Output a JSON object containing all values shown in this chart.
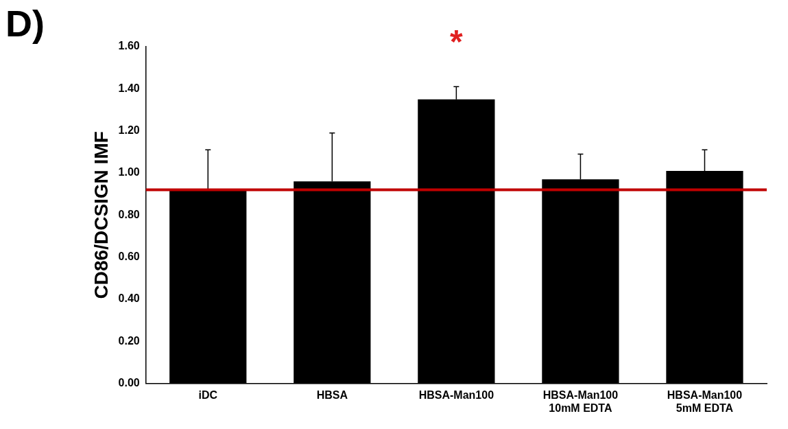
{
  "chart_data": {
    "type": "bar",
    "title": "D)",
    "ylabel": "CD86/DCSIGN IMF",
    "categories": [
      "iDC",
      "HBSA",
      "HBSA-Man100",
      "HBSA-Man100\n10mM EDTA",
      "HBSA-Man100\n5mM EDTA"
    ],
    "values": [
      0.92,
      0.96,
      1.35,
      0.97,
      1.01
    ],
    "errors": [
      [
        0.92,
        1.11
      ],
      [
        0.96,
        1.19
      ],
      [
        1.35,
        1.41
      ],
      [
        0.97,
        1.09
      ],
      [
        1.01,
        1.11
      ]
    ],
    "color": "#000000",
    "ylim": [
      0,
      1.6
    ],
    "yticks": [
      {
        "value": 0,
        "label": "0.00"
      },
      {
        "value": 0.2,
        "label": "0.20"
      },
      {
        "value": 0.4,
        "label": "0.40"
      },
      {
        "value": 0.6,
        "label": "0.60"
      },
      {
        "value": 0.8,
        "label": "0.80"
      },
      {
        "value": 1.0,
        "label": "1.00"
      },
      {
        "value": 1.2,
        "label": "1.20"
      },
      {
        "value": 1.4,
        "label": "1.40"
      },
      {
        "value": 1.6,
        "label": "1.60"
      }
    ],
    "ref_lines": [
      {
        "axis": "y",
        "value": 0.92,
        "color": "#c00000"
      }
    ],
    "annotations": [
      "*"
    ],
    "grid": false,
    "legend": false
  }
}
